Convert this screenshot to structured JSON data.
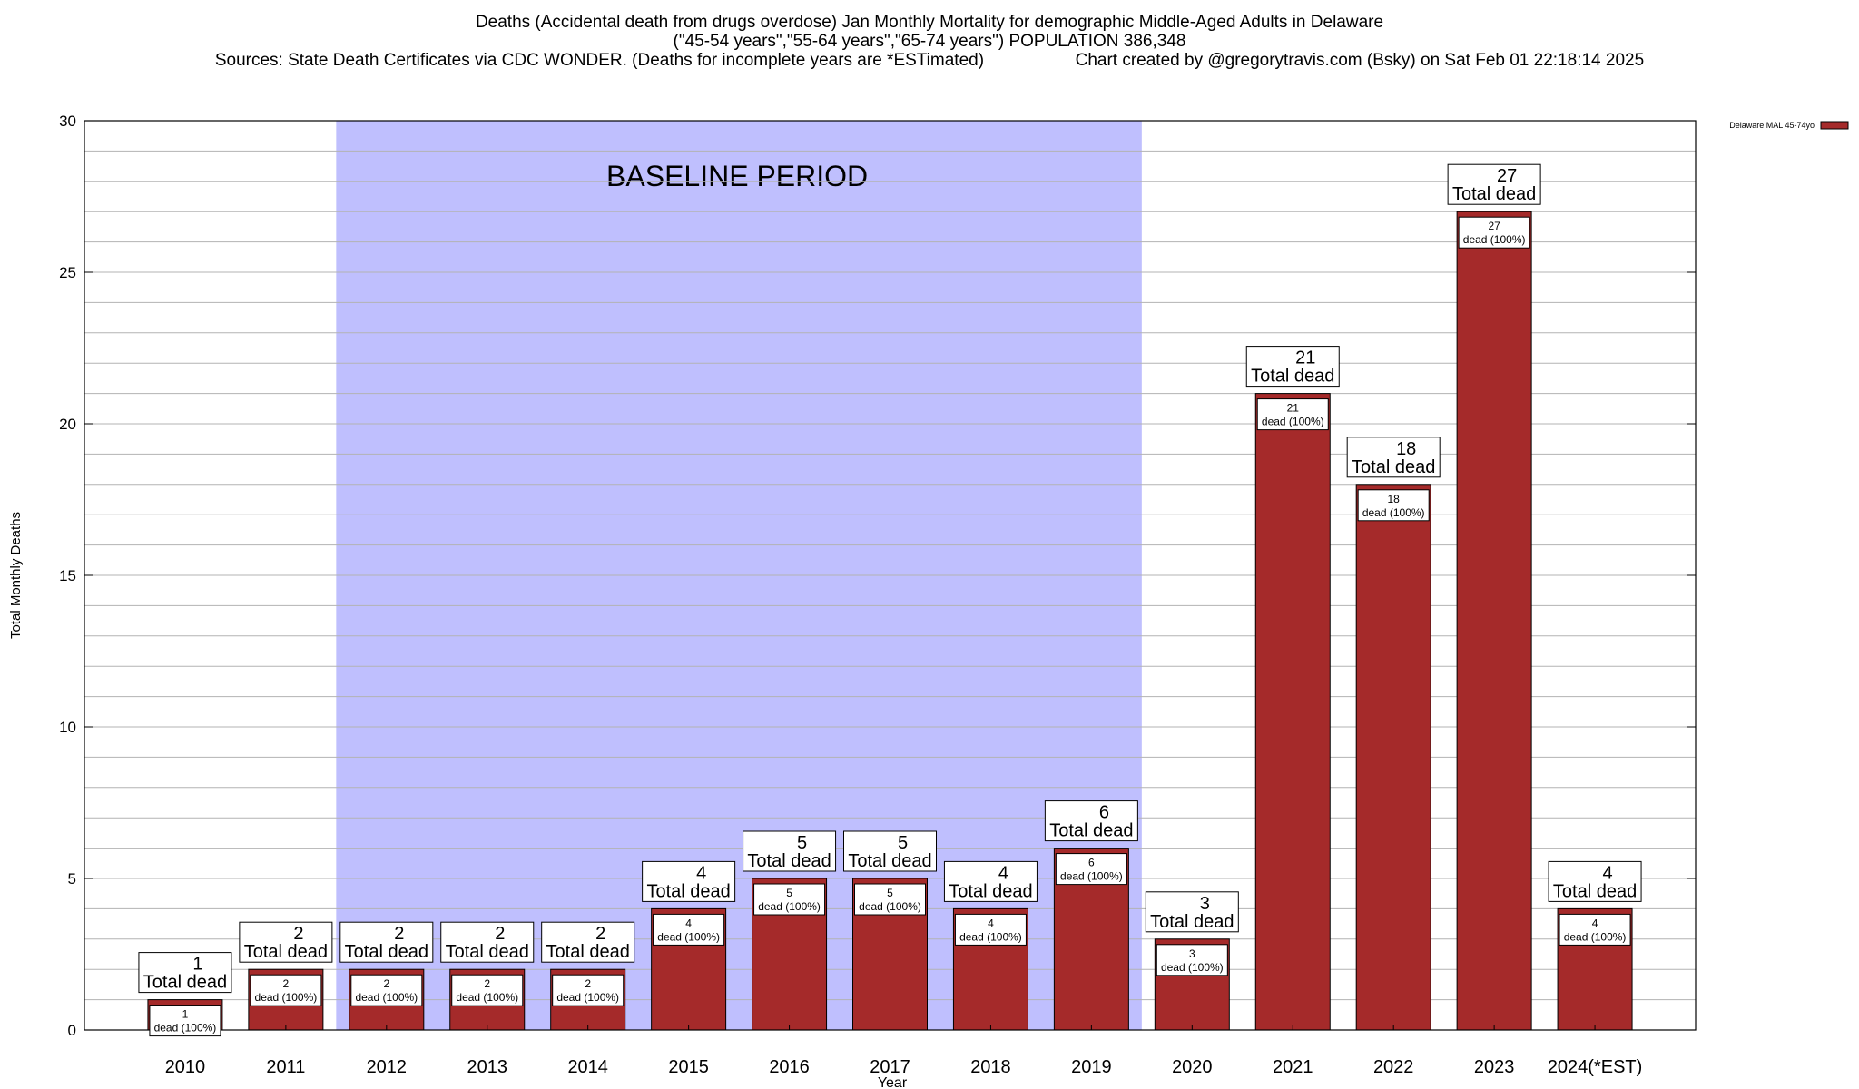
{
  "header": {
    "title_line1": "Deaths (Accidental death from drugs overdose) Jan Monthly Mortality for demographic Middle-Aged Adults in Delaware",
    "title_line2": "(\"45-54 years\",\"55-64 years\",\"65-74 years\") POPULATION 386,348",
    "sources": "Sources: State Death Certificates via CDC WONDER. (Deaths for incomplete years are *ESTimated)",
    "credit": "Chart created by @gregorytravis.com (Bsky) on Sat Feb 01 22:18:14 2025"
  },
  "chart_data": {
    "type": "bar",
    "xlabel": "Year",
    "ylabel": "Total Monthly Deaths",
    "ylim": [
      0,
      30
    ],
    "yticks": [
      0,
      5,
      10,
      15,
      20,
      25,
      30
    ],
    "minor_grid_step": 1,
    "grid": true,
    "legend_position": "top-right",
    "categories": [
      "2010",
      "2011",
      "2012",
      "2013",
      "2014",
      "2015",
      "2016",
      "2017",
      "2018",
      "2019",
      "2020",
      "2021",
      "2022",
      "2023",
      "2024(*EST)"
    ],
    "series": [
      {
        "name": "Delaware MAL 45-74yo",
        "values": [
          1,
          2,
          2,
          2,
          2,
          4,
          5,
          5,
          4,
          6,
          3,
          21,
          18,
          27,
          4
        ],
        "color": "#a52a2a"
      }
    ],
    "bar_label_top_suffix": "Total dead",
    "bar_label_inner_suffix": "dead (100%)",
    "baseline_period": {
      "label": "BASELINE PERIOD",
      "start": "2012",
      "end": "2019",
      "color": "#bfbffe"
    }
  }
}
